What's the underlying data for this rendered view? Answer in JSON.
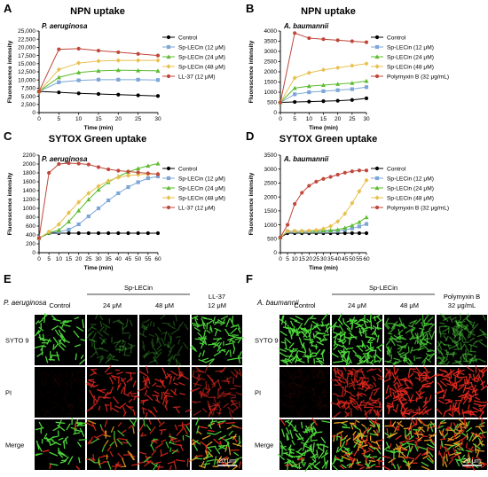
{
  "panel_labels": [
    "A",
    "B",
    "C",
    "D",
    "E",
    "F"
  ],
  "chart_data": [
    {
      "id": "A",
      "type": "line",
      "title": "NPN uptake",
      "organism": "P. aeruginosa",
      "xlabel": "Time (min)",
      "ylabel": "Fluorescence intensity",
      "xlim": [
        0,
        30
      ],
      "ylim": [
        0,
        25000
      ],
      "xticks": [
        0,
        5,
        10,
        15,
        20,
        25,
        30
      ],
      "yticks": [
        0,
        2500,
        5000,
        7500,
        10000,
        12500,
        15000,
        17500,
        20000,
        22500,
        25000
      ],
      "ytick_labels": [
        "0",
        "2,500",
        "5,000",
        "7,500",
        "10,000",
        "12,500",
        "15,000",
        "17,500",
        "20,000",
        "22,500",
        "25,000"
      ],
      "legend_position": "right",
      "x": [
        0,
        5,
        10,
        15,
        20,
        25,
        30
      ],
      "series": [
        {
          "name": "Control",
          "color": "#000000",
          "marker": "circle",
          "values": [
            6500,
            6200,
            5900,
            5700,
            5500,
            5300,
            5100
          ]
        },
        {
          "name": "Sp-LECin (12 μM)",
          "color": "#7ca6d8",
          "marker": "square",
          "values": [
            6500,
            9300,
            9900,
            10100,
            10100,
            10100,
            10000
          ]
        },
        {
          "name": "Sp-LECin (24 μM)",
          "color": "#5dbb2f",
          "marker": "triangle",
          "values": [
            6500,
            10800,
            12300,
            12800,
            13000,
            12900,
            12800
          ]
        },
        {
          "name": "Sp-LECin (48 μM)",
          "color": "#e8c04f",
          "marker": "diamond",
          "values": [
            6500,
            13200,
            15200,
            15800,
            16000,
            16000,
            16000
          ]
        },
        {
          "name": "LL-37 (12 μM)",
          "color": "#c0473a",
          "marker": "circle",
          "values": [
            6500,
            19400,
            19600,
            19000,
            18500,
            18000,
            17500
          ]
        }
      ]
    },
    {
      "id": "B",
      "type": "line",
      "title": "NPN uptake",
      "organism": "A. baumannii",
      "xlabel": "Time (min)",
      "ylabel": "Fluorescence intensity",
      "xlim": [
        0,
        30
      ],
      "ylim": [
        0,
        4000
      ],
      "xticks": [
        0,
        5,
        10,
        15,
        20,
        25,
        30
      ],
      "yticks": [
        0,
        500,
        1000,
        1500,
        2000,
        2500,
        3000,
        3500,
        4000
      ],
      "ytick_labels": [
        "0",
        "500",
        "1000",
        "1500",
        "2000",
        "2500",
        "3000",
        "3500",
        "4000"
      ],
      "legend_position": "right",
      "x": [
        0,
        5,
        10,
        15,
        20,
        25,
        30
      ],
      "series": [
        {
          "name": "Control",
          "color": "#000000",
          "marker": "circle",
          "values": [
            500,
            520,
            540,
            560,
            580,
            620,
            700
          ]
        },
        {
          "name": "Sp-LECin (12 μM)",
          "color": "#7ca6d8",
          "marker": "square",
          "values": [
            500,
            900,
            1000,
            1050,
            1100,
            1150,
            1250
          ]
        },
        {
          "name": "Sp-LECin (24 μM)",
          "color": "#5dbb2f",
          "marker": "triangle",
          "values": [
            500,
            1200,
            1300,
            1350,
            1400,
            1450,
            1550
          ]
        },
        {
          "name": "Sp-LECin (48 μM)",
          "color": "#e8c04f",
          "marker": "diamond",
          "values": [
            500,
            1700,
            1950,
            2100,
            2200,
            2300,
            2400
          ]
        },
        {
          "name": "Polymyxin B (32 μg/mL)",
          "color": "#c0473a",
          "marker": "circle",
          "values": [
            500,
            3900,
            3650,
            3600,
            3550,
            3500,
            3450
          ]
        }
      ]
    },
    {
      "id": "C",
      "type": "line",
      "title": "SYTOX Green uptake",
      "organism": "P. aeruginosa",
      "xlabel": "Time (min)",
      "ylabel": "Fluorescence intensity",
      "xlim": [
        0,
        60
      ],
      "ylim": [
        0,
        2200
      ],
      "xticks": [
        0,
        5,
        10,
        15,
        20,
        25,
        30,
        35,
        40,
        45,
        50,
        55,
        60
      ],
      "yticks": [
        0,
        200,
        400,
        600,
        800,
        1000,
        1200,
        1400,
        1600,
        1800,
        2000,
        2200
      ],
      "ytick_labels": [
        "0",
        "200",
        "400",
        "600",
        "800",
        "1000",
        "1200",
        "1400",
        "1600",
        "1800",
        "2000",
        "2200"
      ],
      "legend_position": "right",
      "x": [
        0,
        5,
        10,
        15,
        20,
        25,
        30,
        35,
        40,
        45,
        50,
        55,
        60
      ],
      "series": [
        {
          "name": "Control",
          "color": "#000000",
          "marker": "circle",
          "values": [
            330,
            440,
            440,
            440,
            440,
            440,
            440,
            440,
            440,
            440,
            440,
            440,
            440
          ]
        },
        {
          "name": "Sp-LECin (12 μM)",
          "color": "#7ca6d8",
          "marker": "square",
          "values": [
            330,
            450,
            470,
            520,
            640,
            820,
            1000,
            1180,
            1340,
            1480,
            1590,
            1680,
            1720
          ]
        },
        {
          "name": "Sp-LECin (24 μM)",
          "color": "#5dbb2f",
          "marker": "triangle",
          "values": [
            330,
            450,
            510,
            700,
            950,
            1200,
            1420,
            1590,
            1720,
            1820,
            1900,
            1960,
            2010
          ]
        },
        {
          "name": "Sp-LECin (48 μM)",
          "color": "#e8c04f",
          "marker": "diamond",
          "values": [
            330,
            470,
            640,
            900,
            1140,
            1340,
            1500,
            1620,
            1700,
            1740,
            1760,
            1770,
            1780
          ]
        },
        {
          "name": "LL-37 (12 μM)",
          "color": "#c0473a",
          "marker": "circle",
          "values": [
            330,
            1800,
            2000,
            2020,
            2010,
            1990,
            1930,
            1880,
            1850,
            1830,
            1810,
            1790,
            1770
          ]
        }
      ]
    },
    {
      "id": "D",
      "type": "line",
      "title": "SYTOX Green uptake",
      "organism": "A. baumannii",
      "xlabel": "Time (min)",
      "ylabel": "Fluorescence intensity",
      "xlim": [
        0,
        60
      ],
      "ylim": [
        0,
        3500
      ],
      "xticks": [
        0,
        5,
        10,
        15,
        20,
        25,
        30,
        35,
        40,
        45,
        50,
        55,
        60
      ],
      "yticks": [
        0,
        500,
        1000,
        1500,
        2000,
        2500,
        3000,
        3500
      ],
      "ytick_labels": [
        "0",
        "500",
        "1000",
        "1500",
        "2000",
        "2500",
        "3000",
        "3500"
      ],
      "legend_position": "right",
      "x": [
        0,
        5,
        10,
        15,
        20,
        25,
        30,
        35,
        40,
        45,
        50,
        55,
        60
      ],
      "series": [
        {
          "name": "Control",
          "color": "#000000",
          "marker": "circle",
          "values": [
            550,
            700,
            700,
            700,
            700,
            700,
            700,
            700,
            700,
            700,
            700,
            700,
            700
          ]
        },
        {
          "name": "Sp-LECin (12 μM)",
          "color": "#7ca6d8",
          "marker": "square",
          "values": [
            550,
            760,
            760,
            760,
            760,
            760,
            760,
            770,
            780,
            820,
            870,
            940,
            1030
          ]
        },
        {
          "name": "Sp-LECin (24 μM)",
          "color": "#5dbb2f",
          "marker": "triangle",
          "values": [
            550,
            780,
            780,
            780,
            780,
            780,
            790,
            800,
            830,
            890,
            980,
            1100,
            1270
          ]
        },
        {
          "name": "Sp-LECin (48 μM)",
          "color": "#e8c04f",
          "marker": "diamond",
          "values": [
            550,
            780,
            780,
            780,
            790,
            810,
            860,
            950,
            1120,
            1400,
            1780,
            2200,
            2600
          ]
        },
        {
          "name": "Polymyxin B (32 μg/mL)",
          "color": "#c0473a",
          "marker": "circle",
          "values": [
            550,
            1000,
            1750,
            2150,
            2400,
            2550,
            2650,
            2720,
            2800,
            2870,
            2920,
            2950,
            2950
          ]
        }
      ]
    }
  ],
  "panel_e": {
    "organism": "P. aeruginosa",
    "group_label": "Sp-LECin",
    "columns": [
      "Control",
      "24 μM",
      "48 μM",
      "LL-37\n12 μM"
    ],
    "rows": [
      "SYTO 9",
      "PI",
      "Merge"
    ],
    "scale_bar": "20 μm"
  },
  "panel_f": {
    "organism": "A. baumannii",
    "group_label": "Sp-LECin",
    "columns": [
      "Control",
      "24 μM",
      "48 μM",
      "Polymyxin B\n32 μg/mL"
    ],
    "rows": [
      "SYTO 9",
      "PI",
      "Merge"
    ],
    "scale_bar": "20 μm"
  }
}
